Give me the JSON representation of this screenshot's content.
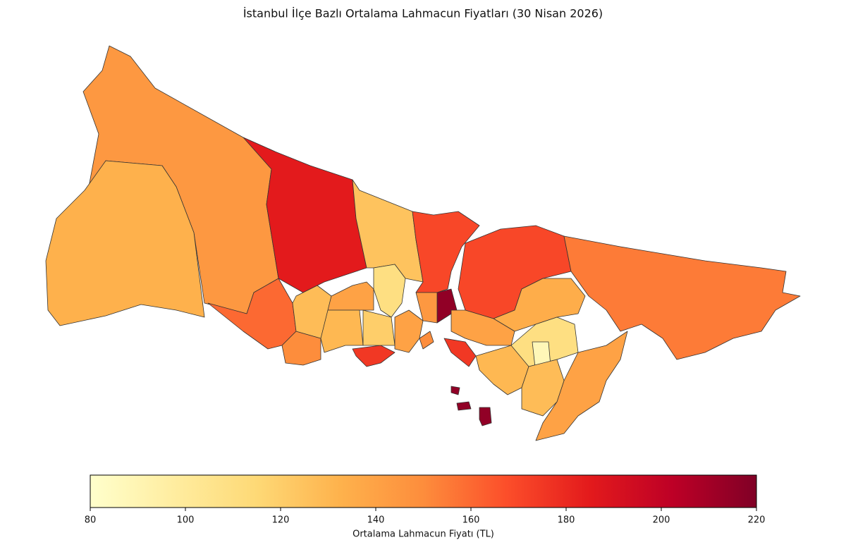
{
  "chart_data": {
    "type": "choropleth",
    "title": "İstanbul İlçe Bazlı Ortalama Lahmacun Fiyatları (30 Nisan 2026)",
    "values": [
      145,
      133,
      185,
      125,
      170,
      215,
      160,
      175,
      170,
      155,
      135,
      140,
      175,
      110,
      88,
      140,
      130,
      128,
      150,
      128,
      140,
      110,
      130,
      120,
      140,
      145,
      150,
      215,
      215,
      215
    ],
    "colors": [
      "#ffffcc",
      "#ffeda0",
      "#fed976",
      "#feb24c",
      "#fd8d3c",
      "#fc4e2a",
      "#e31a1c",
      "#bd0026",
      "#800026"
    ],
    "colorbar": {
      "label": "Ortalama Lahmacun Fiyatı (TL)",
      "lim": [
        80,
        220
      ],
      "ticks": [
        80,
        100,
        120,
        140,
        160,
        180,
        200,
        220
      ]
    }
  }
}
